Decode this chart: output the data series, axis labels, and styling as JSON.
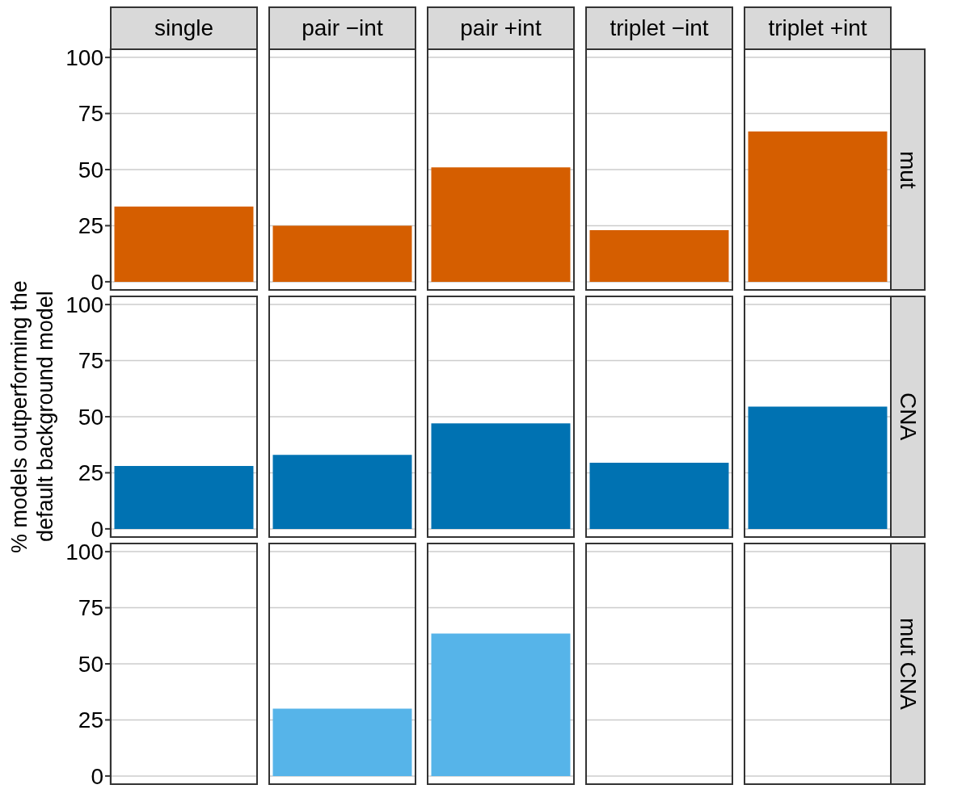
{
  "chart_data": [
    {
      "type": "bar",
      "title": "mut",
      "categories": [
        "single",
        "pair −int",
        "pair +int",
        "triplet −int",
        "triplet +int"
      ],
      "values": [
        33.5,
        25,
        51,
        23,
        67
      ],
      "color": "#d55e00",
      "ylim": [
        -4,
        104
      ],
      "yticks": [
        0,
        25,
        50,
        75,
        100
      ],
      "grid": true
    },
    {
      "type": "bar",
      "title": "CNA",
      "ylabel": "% models outperforming the default background model",
      "values": [
        28,
        33,
        47,
        29.5,
        54.5
      ],
      "color": "#0072b2",
      "ylim": [
        -4,
        104
      ],
      "yticks": [
        0,
        25,
        50,
        75,
        100
      ],
      "grid": true,
      "tick_labels": "y"
    },
    {
      "type": "bar",
      "title": "mut CNA",
      "values": [
        null,
        30,
        63.5,
        null,
        null
      ],
      "color": "#56b4e9",
      "ylim": [
        -4,
        104
      ],
      "yticks": [
        0,
        25,
        50,
        75,
        100
      ],
      "grid": true,
      "tick_labels": "y"
    }
  ]
}
